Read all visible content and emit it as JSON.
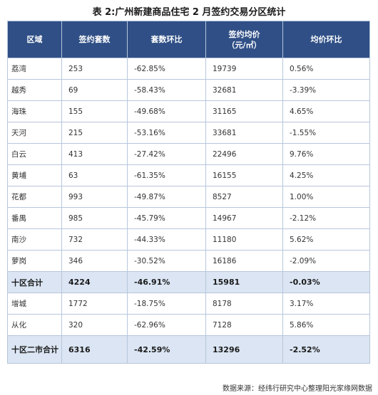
{
  "title": "表 2:广州新建商品住宅 2 月签约交易分区统计",
  "header": {
    "col1": "区域",
    "col2": "签约套数",
    "col3": "套数环比",
    "col4_line1": "签约均价",
    "col4_line2": "（元/㎡）",
    "col5": "均价环比"
  },
  "rows": [
    {
      "area": "荔湾",
      "units": "253",
      "units_mom": "-62.85%",
      "price": "19739",
      "price_mom": "0.56%"
    },
    {
      "area": "越秀",
      "units": "69",
      "units_mom": "-58.43%",
      "price": "32681",
      "price_mom": "-3.39%"
    },
    {
      "area": "海珠",
      "units": "155",
      "units_mom": "-49.68%",
      "price": "31165",
      "price_mom": "4.65%"
    },
    {
      "area": "天河",
      "units": "215",
      "units_mom": "-53.16%",
      "price": "33681",
      "price_mom": "-1.55%"
    },
    {
      "area": "白云",
      "units": "413",
      "units_mom": "-27.42%",
      "price": "22496",
      "price_mom": "9.76%"
    },
    {
      "area": "黄埔",
      "units": "63",
      "units_mom": "-61.35%",
      "price": "16155",
      "price_mom": "4.25%"
    },
    {
      "area": "花都",
      "units": "993",
      "units_mom": "-49.87%",
      "price": "8527",
      "price_mom": "1.00%"
    },
    {
      "area": "番禺",
      "units": "985",
      "units_mom": "-45.79%",
      "price": "14967",
      "price_mom": "-2.12%"
    },
    {
      "area": "南沙",
      "units": "732",
      "units_mom": "-44.33%",
      "price": "11180",
      "price_mom": "5.62%"
    },
    {
      "area": "萝岗",
      "units": "346",
      "units_mom": "-30.52%",
      "price": "16186",
      "price_mom": "-2.09%"
    }
  ],
  "ten_total": {
    "area": "十区合计",
    "units": "4224",
    "units_mom": "-46.91%",
    "price": "15981",
    "price_mom": "-0.03%"
  },
  "extra_rows": [
    {
      "area": "增城",
      "units": "1772",
      "units_mom": "-18.75%",
      "price": "8178",
      "price_mom": "3.17%"
    },
    {
      "area": "从化",
      "units": "320",
      "units_mom": "-62.96%",
      "price": "7128",
      "price_mom": "5.86%"
    }
  ],
  "grand_total": {
    "area": "十区二市合计",
    "units": "6316",
    "units_mom": "-42.59%",
    "price": "13296",
    "price_mom": "-2.52%"
  },
  "source": "数据来源：经纬行研究中心整理阳光家缘网数据",
  "watermark": "经纬行研究中心"
}
